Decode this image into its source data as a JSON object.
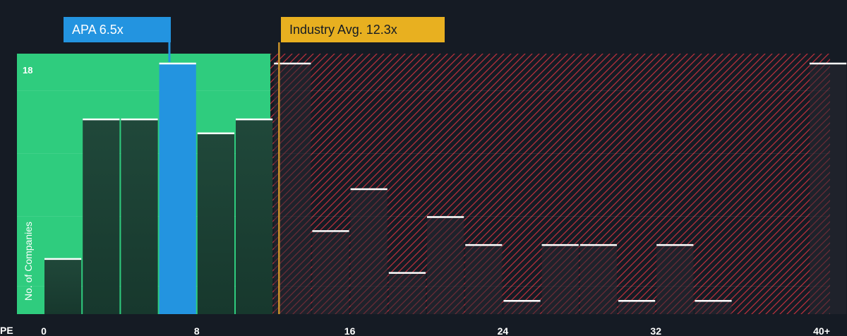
{
  "chart_data": {
    "type": "bar",
    "title": "",
    "xlabel": "PE",
    "ylabel": "No. of Companies",
    "x_tick_labels": [
      "0",
      "8",
      "16",
      "24",
      "32",
      "40+"
    ],
    "x_tick_values": [
      0,
      8,
      16,
      24,
      32,
      40
    ],
    "y_tick_labels": [
      "18"
    ],
    "y_tick_values": [
      18
    ],
    "xlim": [
      0,
      41
    ],
    "ylim": [
      0,
      18
    ],
    "bin_width": 2,
    "bins": [
      {
        "start": 0,
        "value": 4
      },
      {
        "start": 2,
        "value": 14
      },
      {
        "start": 4,
        "value": 14
      },
      {
        "start": 6,
        "value": 18,
        "highlight": true
      },
      {
        "start": 8,
        "value": 13
      },
      {
        "start": 10,
        "value": 14
      },
      {
        "start": 12,
        "value": 18
      },
      {
        "start": 14,
        "value": 6
      },
      {
        "start": 16,
        "value": 9
      },
      {
        "start": 18,
        "value": 3
      },
      {
        "start": 20,
        "value": 7
      },
      {
        "start": 22,
        "value": 5
      },
      {
        "start": 24,
        "value": 1
      },
      {
        "start": 26,
        "value": 5
      },
      {
        "start": 28,
        "value": 5
      },
      {
        "start": 30,
        "value": 1
      },
      {
        "start": 32,
        "value": 5
      },
      {
        "start": 34,
        "value": 1
      },
      {
        "start": 36,
        "value": 0
      },
      {
        "start": 38,
        "value": 0
      },
      {
        "start": 40,
        "value": 18
      }
    ],
    "markers": {
      "company": {
        "label": "APA 6.5x",
        "value": 6.5
      },
      "industry_avg": {
        "label": "Industry Avg. 12.3x",
        "value": 12.3
      }
    },
    "fair_zone_end": 12,
    "grid": true
  },
  "colors": {
    "background": "#151b24",
    "fair_zone": "#2fcc7e",
    "bar_dark": "#1c4a3a",
    "highlight_bar": "#2394e0",
    "hatch_line": "#b8303c",
    "bar_top": "#ffffff",
    "industry_line": "#c8922a",
    "company_callout": "#2394e0",
    "industry_callout": "#e8b020"
  }
}
